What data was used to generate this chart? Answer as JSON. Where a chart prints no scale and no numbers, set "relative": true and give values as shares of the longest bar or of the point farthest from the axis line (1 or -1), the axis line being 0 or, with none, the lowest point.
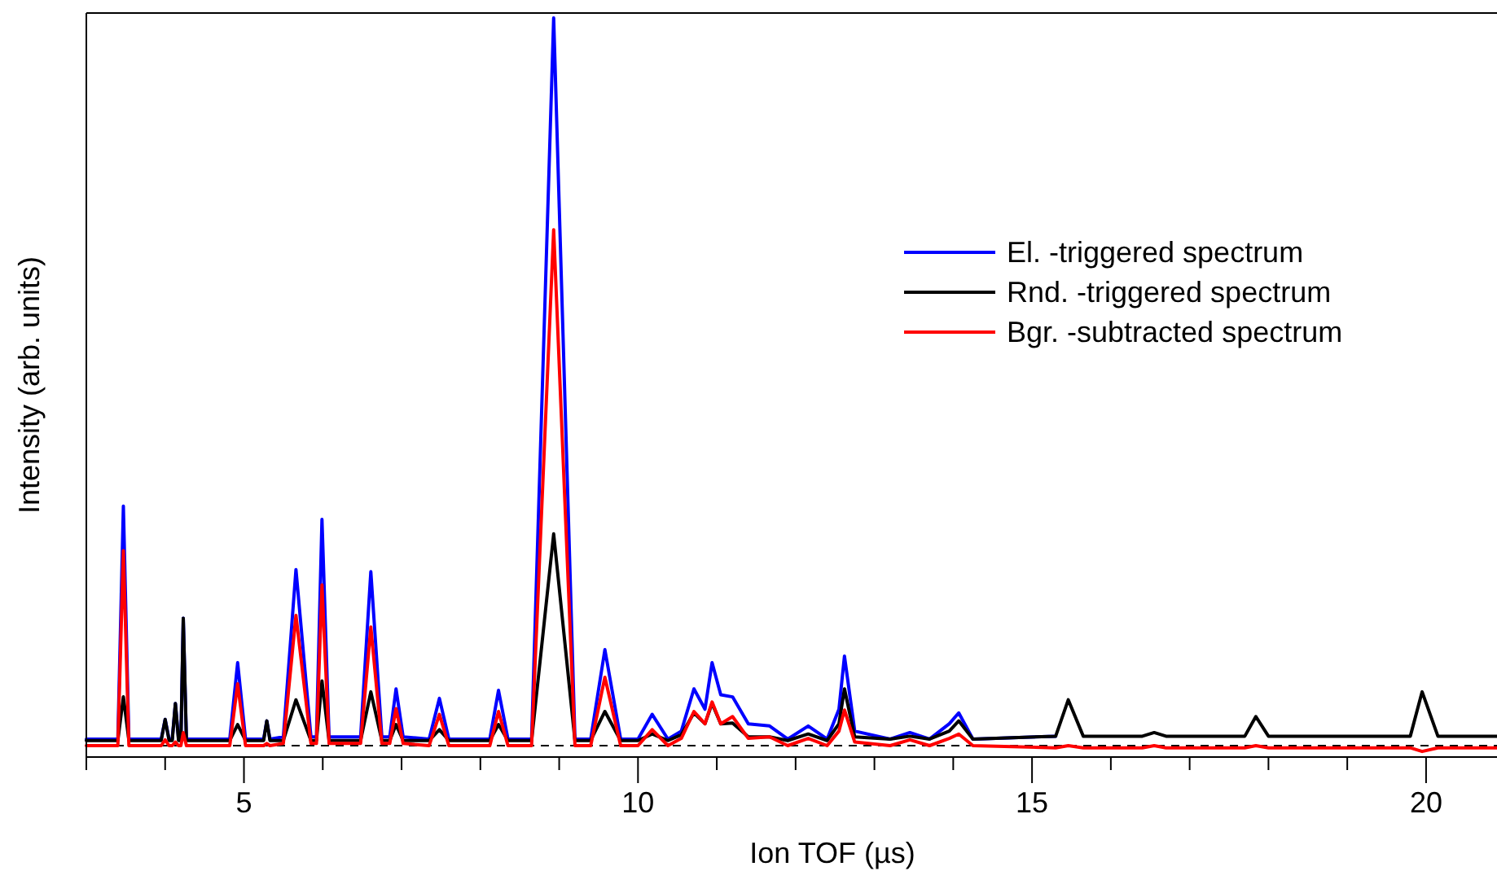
{
  "chart_data": {
    "type": "line",
    "relative": true,
    "xlabel": "Ion TOF (µs)",
    "ylabel": "Intensity (arb. units)",
    "legend": "right",
    "line_style": "solid",
    "marker": "none",
    "x": [
      3.0,
      3.4,
      3.47,
      3.54,
      3.95,
      4.0,
      4.05,
      4.09,
      4.13,
      4.17,
      4.2,
      4.23,
      4.27,
      4.82,
      4.92,
      5.02,
      5.25,
      5.29,
      5.33,
      5.5,
      5.66,
      5.85,
      5.92,
      5.99,
      6.08,
      6.48,
      6.61,
      6.75,
      6.85,
      6.93,
      7.02,
      7.35,
      7.48,
      7.6,
      8.12,
      8.23,
      8.35,
      8.65,
      8.93,
      9.2,
      9.4,
      9.58,
      9.78,
      10.0,
      10.18,
      10.38,
      10.55,
      10.71,
      10.85,
      10.94,
      11.05,
      11.2,
      11.4,
      11.67,
      11.9,
      12.16,
      12.4,
      12.55,
      12.62,
      12.75,
      13.2,
      13.45,
      13.7,
      13.95,
      14.07,
      14.25,
      15.3,
      15.46,
      15.65,
      16.4,
      16.55,
      16.7,
      17.7,
      17.84,
      18.0,
      19.8,
      19.95,
      20.15,
      20.9
    ],
    "xlim": [
      3,
      20.9
    ],
    "xticks": [
      {
        "value": 3,
        "label": null
      },
      {
        "value": 4,
        "label": null
      },
      5,
      {
        "value": 6,
        "label": null
      },
      {
        "value": 7,
        "label": null
      },
      {
        "value": 8,
        "label": null
      },
      {
        "value": 9,
        "label": null
      },
      10,
      {
        "value": 11,
        "label": null
      },
      {
        "value": 12,
        "label": null
      },
      {
        "value": 13,
        "label": null
      },
      {
        "value": 14,
        "label": null
      },
      15,
      {
        "value": 16,
        "label": null
      },
      {
        "value": 17,
        "label": null
      },
      {
        "value": 18,
        "label": null
      },
      {
        "value": 19,
        "label": null
      },
      20
    ],
    "tick_labels": "x",
    "ref_lines": [
      {
        "axis": "y",
        "value": 0,
        "color": "#000000",
        "line_style": "dashed"
      }
    ],
    "series": [
      {
        "name": "El. -triggered spectrum",
        "color": "#0000ff",
        "values": [
          0.009,
          0.009,
          0.329,
          0.009,
          0.009,
          0.036,
          0.009,
          0.009,
          0.058,
          0.009,
          0.009,
          0.175,
          0.009,
          0.009,
          0.114,
          0.009,
          0.009,
          0.034,
          0.009,
          0.012,
          0.242,
          0.012,
          0.012,
          0.311,
          0.012,
          0.012,
          0.239,
          0.012,
          0.012,
          0.078,
          0.012,
          0.009,
          0.065,
          0.009,
          0.009,
          0.076,
          0.009,
          0.009,
          1.0,
          0.009,
          0.009,
          0.132,
          0.009,
          0.009,
          0.043,
          0.009,
          0.02,
          0.078,
          0.05,
          0.114,
          0.07,
          0.067,
          0.03,
          0.027,
          0.009,
          0.027,
          0.009,
          0.05,
          0.123,
          0.02,
          0.009,
          0.018,
          0.009,
          0.03,
          0.045,
          0.009,
          0.013,
          null,
          null,
          null,
          null,
          null,
          null,
          null,
          null,
          null,
          null,
          null,
          null
        ]
      },
      {
        "name": "Rnd. -triggered spectrum",
        "color": "#000000",
        "values": [
          0.007,
          0.007,
          0.067,
          0.007,
          0.007,
          0.036,
          0.007,
          0.007,
          0.058,
          0.007,
          0.007,
          0.175,
          0.007,
          0.007,
          0.029,
          0.007,
          0.007,
          0.034,
          0.007,
          0.007,
          0.063,
          0.007,
          0.007,
          0.089,
          0.007,
          0.007,
          0.074,
          0.007,
          0.007,
          0.029,
          0.007,
          0.007,
          0.022,
          0.007,
          0.007,
          0.029,
          0.007,
          0.007,
          0.291,
          0.007,
          0.007,
          0.047,
          0.007,
          0.007,
          0.016,
          0.007,
          0.015,
          0.045,
          0.03,
          0.058,
          0.03,
          0.031,
          0.012,
          0.012,
          0.007,
          0.016,
          0.007,
          0.03,
          0.078,
          0.012,
          0.009,
          0.013,
          0.009,
          0.02,
          0.034,
          0.009,
          0.013,
          0.063,
          0.013,
          0.013,
          0.018,
          0.013,
          0.013,
          0.04,
          0.013,
          0.013,
          0.074,
          0.013,
          0.013
        ]
      },
      {
        "name": "Bgr. -subtracted spectrum",
        "color": "#ff0000",
        "values": [
          0,
          0,
          0.268,
          0,
          0,
          0.008,
          0,
          0,
          0.005,
          0,
          0,
          0.018,
          0,
          0,
          0.085,
          0,
          0,
          0.003,
          0,
          0.003,
          0.179,
          0.003,
          0.003,
          0.221,
          0.003,
          0.003,
          0.163,
          0.003,
          0.003,
          0.051,
          0.003,
          0,
          0.043,
          0,
          0,
          0.047,
          0,
          0,
          0.709,
          0,
          0,
          0.094,
          0,
          0,
          0.022,
          0,
          0.01,
          0.047,
          0.03,
          0.06,
          0.03,
          0.04,
          0.01,
          0.012,
          0,
          0.01,
          0,
          0.02,
          0.049,
          0.005,
          0,
          0.008,
          0,
          0.01,
          0.016,
          0,
          -0.003,
          0,
          -0.003,
          -0.003,
          0,
          -0.003,
          -0.003,
          0,
          -0.003,
          -0.003,
          -0.008,
          -0.003,
          -0.003
        ]
      }
    ]
  }
}
